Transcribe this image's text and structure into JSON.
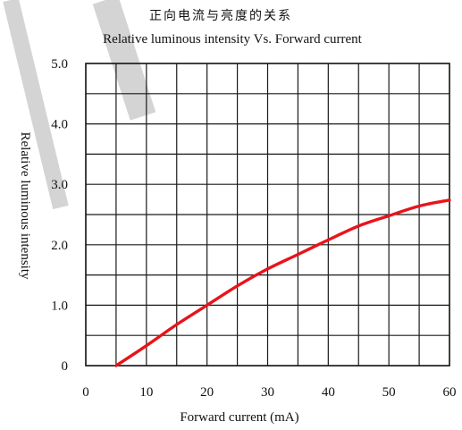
{
  "chart_data": {
    "type": "line",
    "title": "正向电流与亮度的关系",
    "subtitle": "Relative luminous intensity Vs. Forward current",
    "xlabel": "Forward current (mA)",
    "ylabel": "Relative luminous intensity",
    "xlim": [
      0,
      60
    ],
    "ylim": [
      0,
      5.0
    ],
    "x_ticks": [
      0,
      10,
      20,
      30,
      40,
      50,
      60
    ],
    "x_tick_labels": [
      "0",
      "10",
      "20",
      "30",
      "40",
      "50",
      "60"
    ],
    "y_ticks": [
      0,
      1.0,
      2.0,
      3.0,
      4.0,
      5.0
    ],
    "y_tick_labels": [
      "0",
      "1.0",
      "2.0",
      "3.0",
      "4.0",
      "5.0"
    ],
    "grid": true,
    "x_grid_step": 5,
    "y_grid_step": 0.5,
    "series": [
      {
        "color": "#e8141b",
        "x": [
          5,
          10,
          15,
          20,
          25,
          30,
          35,
          40,
          45,
          50,
          55,
          60
        ],
        "y": [
          0.0,
          0.33,
          0.68,
          1.0,
          1.32,
          1.6,
          1.84,
          2.08,
          2.31,
          2.48,
          2.64,
          2.74
        ]
      }
    ]
  },
  "watermark": {
    "color": "#d0d0d0"
  }
}
